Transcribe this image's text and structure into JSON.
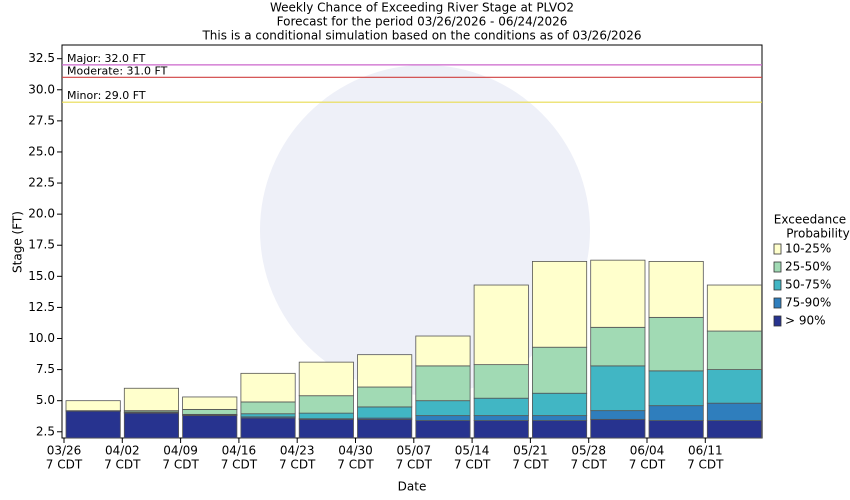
{
  "chart_data": {
    "type": "exceedance_bar",
    "title": [
      "Weekly Chance of Exceeding River Stage at PLVO2",
      "Forecast for the period 03/26/2026 - 06/24/2026",
      "This is a conditional simulation based on the conditions as of 03/26/2026"
    ],
    "x_label": "Date",
    "y_label": "Stage (FT)",
    "categories": [
      "03/26",
      "04/02",
      "04/09",
      "04/16",
      "04/23",
      "04/30",
      "05/07",
      "05/14",
      "05/21",
      "05/28",
      "06/04",
      "06/11"
    ],
    "category_sublabel": "7 CDT",
    "ylim": [
      2.0,
      33.6
    ],
    "yticks": [
      2.5,
      {
        "value": 5.0,
        "label": "5.0"
      },
      7.5,
      {
        "value": 10.0,
        "label": "10.0"
      },
      12.5,
      {
        "value": 15.0,
        "label": "15.0"
      },
      17.5,
      {
        "value": 20.0,
        "label": "20.0"
      },
      22.5,
      {
        "value": 25.0,
        "label": "25.0"
      },
      27.5,
      {
        "value": 30.0,
        "label": "30.0"
      },
      32.5
    ],
    "legend_title": [
      "Exceedance",
      "Probability"
    ],
    "series": [
      {
        "name": "> 90%",
        "color": "#27338f",
        "values": [
          4.2,
          4.0,
          3.8,
          3.6,
          3.5,
          3.5,
          3.4,
          3.4,
          3.4,
          3.5,
          3.4,
          3.4
        ]
      },
      {
        "name": "75-90%",
        "color": "#2f7ebd",
        "values": [
          4.2,
          4.05,
          3.85,
          3.7,
          3.55,
          3.6,
          3.8,
          3.8,
          3.8,
          4.2,
          4.6,
          4.8
        ]
      },
      {
        "name": "50-75%",
        "color": "#41b6c4",
        "values": [
          4.2,
          4.1,
          3.9,
          3.95,
          4.0,
          4.5,
          5.0,
          5.2,
          5.6,
          7.8,
          7.4,
          7.5
        ]
      },
      {
        "name": "25-50%",
        "color": "#a1dab4",
        "values": [
          4.2,
          4.2,
          4.3,
          4.9,
          5.4,
          6.1,
          7.8,
          7.9,
          9.3,
          10.9,
          11.7,
          10.6
        ]
      },
      {
        "name": "10-25%",
        "color": "#ffffcc",
        "values": [
          5.0,
          6.0,
          5.3,
          7.2,
          8.1,
          8.7,
          10.2,
          14.3,
          16.2,
          16.3,
          16.2,
          14.3
        ]
      }
    ],
    "flood_stages": [
      {
        "label": "Major: 32.0 FT",
        "value": 32.0,
        "color": "#cc66cc"
      },
      {
        "label": "Moderate: 31.0 FT",
        "value": 31.0,
        "color": "#d04040"
      },
      {
        "label": "Minor: 29.0 FT",
        "value": 29.0,
        "color": "#e8dc50"
      }
    ]
  }
}
